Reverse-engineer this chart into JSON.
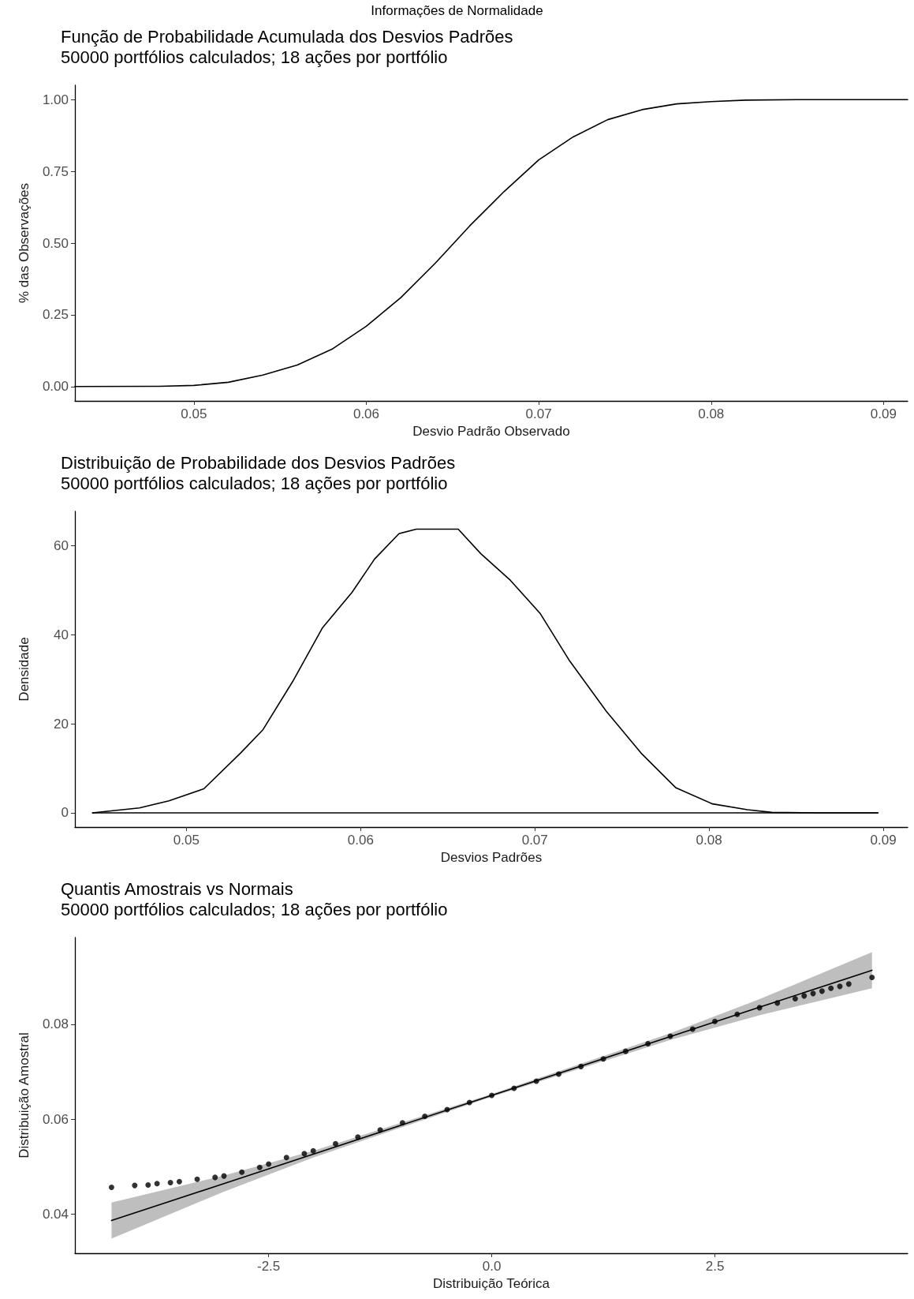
{
  "chart_data": [
    {
      "type": "line",
      "title": "Função de Probabilidade Acumulada dos Desvios Padrões",
      "subtitle": "50000 portfólios calculados; 18 ações por portfólio",
      "annotations": [
        "Informações de Normalidade"
      ],
      "xlabel": "Desvio Padrão Observado",
      "ylabel": "% das Observações",
      "xlim": [
        0.0431,
        0.0914
      ],
      "xticks": [
        0.05,
        0.06,
        0.07,
        0.08,
        0.09
      ],
      "ylim": [
        -0.05,
        1.05
      ],
      "yticks": [
        {
          "value": 0,
          "label": "0.00"
        },
        0.25,
        {
          "value": 0.5,
          "label": "0.50"
        },
        0.75,
        {
          "value": 1,
          "label": "1.00"
        }
      ],
      "grid": false,
      "marker": "none",
      "line_style": "solid",
      "series": [
        {
          "color": "#000000",
          "x": [
            0.0431,
            0.048,
            0.05,
            0.052,
            0.054,
            0.056,
            0.058,
            0.06,
            0.062,
            0.064,
            0.066,
            0.068,
            0.07,
            0.072,
            0.074,
            0.076,
            0.078,
            0.08,
            0.082,
            0.085,
            0.0914
          ],
          "values": [
            0,
            0.001,
            0.004,
            0.015,
            0.04,
            0.075,
            0.13,
            0.21,
            0.31,
            0.43,
            0.56,
            0.68,
            0.79,
            0.87,
            0.93,
            0.965,
            0.985,
            0.993,
            0.998,
            1,
            1
          ]
        }
      ]
    },
    {
      "type": "line",
      "title": "Distribuição de Probabilidade dos Desvios Padrões",
      "subtitle": "50000 portfólios calculados; 18 ações por portfólio",
      "xlabel": "Desvios Padrões",
      "ylabel": "Densidade",
      "xlim": [
        0.0436,
        0.0914
      ],
      "xticks": [
        0.05,
        0.06,
        0.07,
        0.08,
        0.09
      ],
      "ylim": [
        -3.2,
        67.7
      ],
      "yticks": [
        0,
        20,
        40,
        60
      ],
      "grid": false,
      "marker": "none",
      "line_style": "solid",
      "ref_lines": [
        {
          "axis": "y",
          "value": 0,
          "color": "#000000"
        }
      ],
      "series": [
        {
          "color": "#000000",
          "x": [
            0.0446,
            0.0473,
            0.049,
            0.051,
            0.0531,
            0.0544,
            0.0561,
            0.0578,
            0.0595,
            0.0608,
            0.0622,
            0.0632,
            0.0656,
            0.0669,
            0.0686,
            0.0703,
            0.072,
            0.0741,
            0.0761,
            0.0781,
            0.0802,
            0.0822,
            0.0836,
            0.0862,
            0.0897
          ],
          "values": [
            0,
            1.1,
            2.7,
            5.4,
            13.4,
            18.7,
            29.5,
            41.5,
            49.5,
            57,
            62.7,
            63.7,
            63.7,
            58.2,
            52.2,
            44.8,
            34.1,
            22.8,
            13.4,
            5.6,
            2,
            0.7,
            0.1,
            0,
            0
          ]
        }
      ]
    },
    {
      "type": "scatter",
      "title": "Quantis Amostrais vs Normais",
      "subtitle": "50000 portfólios calculados; 18 ações por portfólio",
      "xlabel": "Distribuição Teórica",
      "ylabel": "Distribuição Amostral",
      "xlim": [
        -4.67,
        4.66
      ],
      "xticks": [
        -2.5,
        {
          "value": 0,
          "label": "0.0"
        },
        2.5
      ],
      "ylim": [
        0.0317,
        0.0983
      ],
      "yticks": [
        0.04,
        0.06,
        0.08
      ],
      "grid": false,
      "marker": "circle",
      "series": [
        {
          "color": "#000000",
          "x": [
            -4.26,
            -4.0,
            -3.85,
            -3.75,
            -3.6,
            -3.5,
            -3.3,
            -3.1,
            -3.0,
            -2.8,
            -2.6,
            -2.5,
            -2.3,
            -2.1,
            -2.0,
            -1.75,
            -1.5,
            -1.25,
            -1.0,
            -0.75,
            -0.5,
            -0.25,
            0,
            0.25,
            0.5,
            0.75,
            1.0,
            1.25,
            1.5,
            1.75,
            2.0,
            2.25,
            2.5,
            2.75,
            3.0,
            3.2,
            3.4,
            3.5,
            3.6,
            3.7,
            3.8,
            3.9,
            4.0,
            4.26
          ],
          "values": [
            0.0456,
            0.046,
            0.0461,
            0.0464,
            0.0466,
            0.0468,
            0.0473,
            0.0477,
            0.048,
            0.0488,
            0.0498,
            0.0505,
            0.0519,
            0.0527,
            0.0533,
            0.0548,
            0.0562,
            0.0577,
            0.0592,
            0.0606,
            0.062,
            0.0635,
            0.065,
            0.0665,
            0.068,
            0.0695,
            0.0711,
            0.0727,
            0.0743,
            0.0759,
            0.0775,
            0.079,
            0.0806,
            0.0821,
            0.0835,
            0.0845,
            0.0854,
            0.086,
            0.0865,
            0.087,
            0.0876,
            0.088,
            0.0885,
            0.0899
          ]
        },
        {
          "type": "line",
          "color": "#000000",
          "line_style": "solid",
          "marker": "none",
          "x": [
            -4.26,
            -3,
            -2,
            0,
            2,
            3,
            4.26
          ],
          "values": [
            0.0386,
            0.0464,
            0.0526,
            0.065,
            0.0774,
            0.0836,
            0.0914
          ],
          "lower": [
            0.0348,
            0.0447,
            0.0519,
            0.0647,
            0.0767,
            0.0819,
            0.0876
          ],
          "upper": [
            0.0424,
            0.0481,
            0.0533,
            0.0653,
            0.0781,
            0.0853,
            0.0952
          ]
        }
      ]
    }
  ]
}
